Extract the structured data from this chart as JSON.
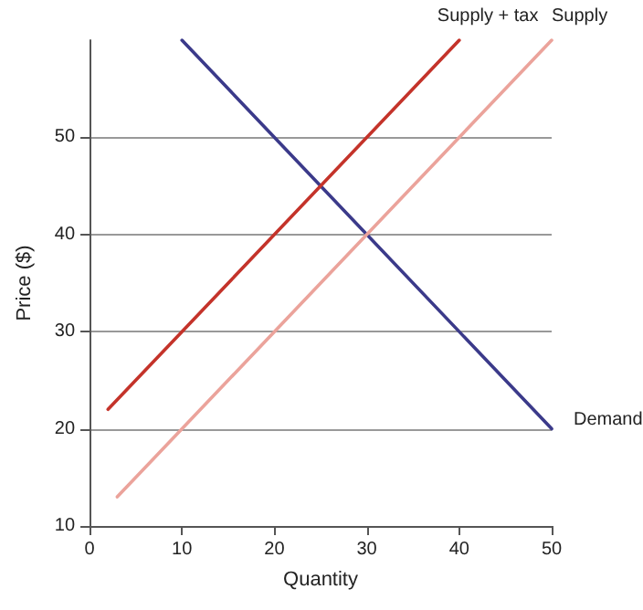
{
  "chart_data": {
    "type": "line",
    "xlabel": "Quantity",
    "ylabel": "Price ($)",
    "xlim": [
      0,
      50
    ],
    "xticks": [
      0,
      10,
      20,
      30,
      40,
      50
    ],
    "ylim": [
      10,
      60
    ],
    "yticks": [
      10,
      20,
      30,
      40,
      50
    ],
    "grid": "y",
    "legend": false,
    "marker": "none",
    "line_style": "solid",
    "series": [
      {
        "name": "Demand",
        "color": "#3b3a8a",
        "x": [
          10,
          50
        ],
        "values": [
          60,
          20
        ]
      },
      {
        "name": "Supply + tax",
        "color": "#c4332a",
        "x": [
          2,
          40
        ],
        "values": [
          22,
          60
        ]
      },
      {
        "name": "Supply",
        "color": "#eba39b",
        "x": [
          3,
          50
        ],
        "values": [
          13,
          60
        ]
      }
    ]
  }
}
